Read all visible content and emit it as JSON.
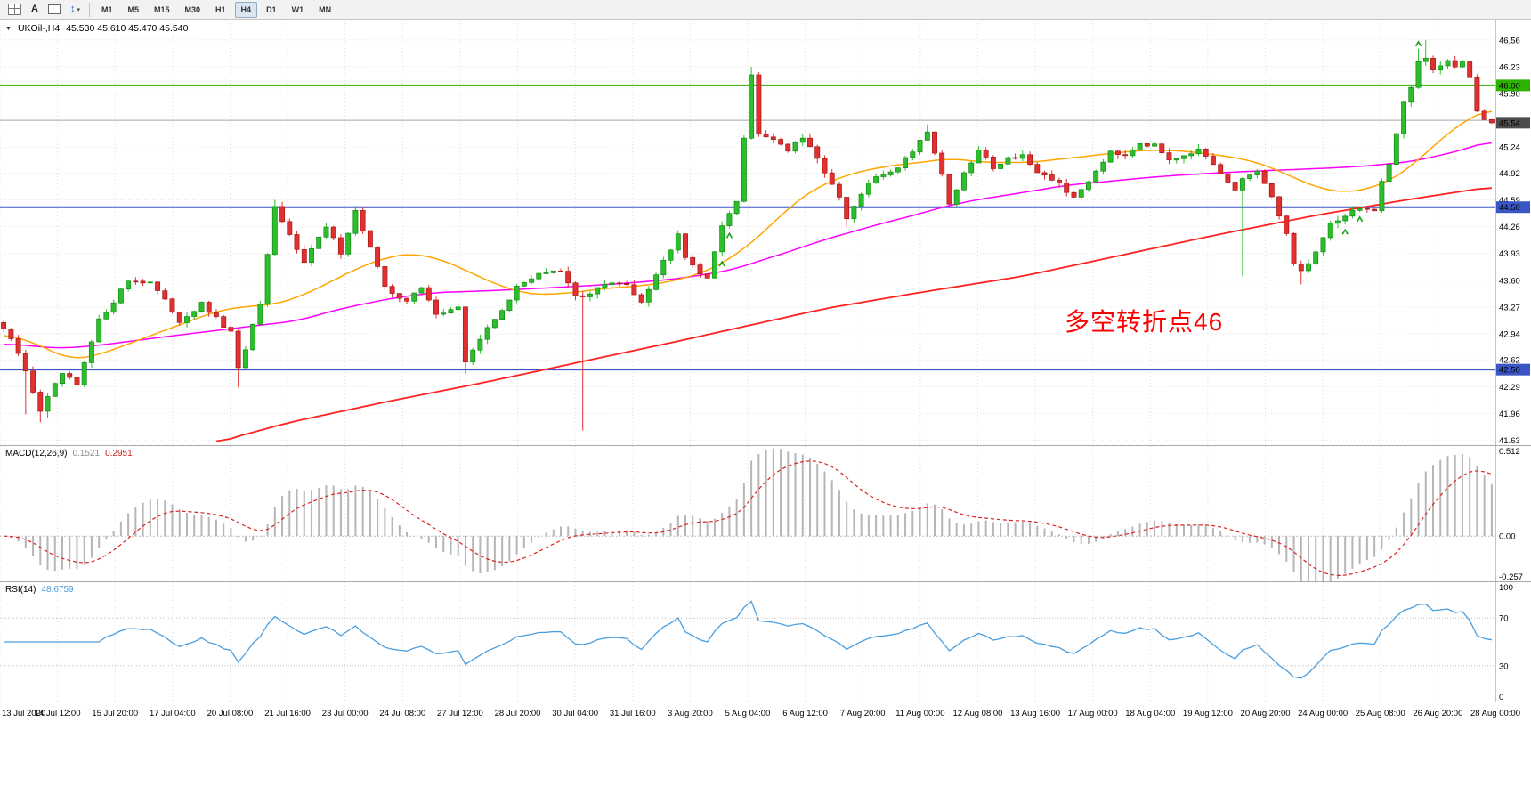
{
  "toolbar": {
    "icons": {
      "text_tool": "A",
      "arrows_tool": "↕",
      "caret": "▾"
    },
    "timeframes": [
      "M1",
      "M5",
      "M15",
      "M30",
      "H1",
      "H4",
      "D1",
      "W1",
      "MN"
    ],
    "active_timeframe": "H4"
  },
  "chart": {
    "symbol_header": "UKOil-,H4",
    "ohlc_header": "45.530 45.610 45.470 45.540",
    "dropdown_glyph": "▼",
    "annotation": "多空转折点46",
    "annotation_color": "#FF0000"
  },
  "price_axis": {
    "labels": [
      "46.56",
      "46.23",
      "45.90",
      "45.57",
      "45.24",
      "44.92",
      "44.59",
      "44.26",
      "43.93",
      "43.60",
      "43.27",
      "42.94",
      "42.62",
      "42.29",
      "41.96",
      "41.63"
    ],
    "tags": [
      {
        "label": "46.00",
        "value": 46.0,
        "bg": "#2DB200",
        "name": "resistance-line-price-tag"
      },
      {
        "label": "45.54",
        "value": 45.54,
        "bg": "#4D4D4D",
        "name": "current-price-tag"
      },
      {
        "label": "44.50",
        "value": 44.5,
        "bg": "#3A56C4",
        "name": "support-line-price-tag-1"
      },
      {
        "label": "42.50",
        "value": 42.5,
        "bg": "#3A56C4",
        "name": "support-line-price-tag-2"
      }
    ]
  },
  "time_axis": {
    "labels": [
      "13 Jul 2020",
      "14 Jul 12:00",
      "15 Jul 20:00",
      "17 Jul 04:00",
      "20 Jul 08:00",
      "21 Jul 16:00",
      "23 Jul 00:00",
      "24 Jul 08:00",
      "27 Jul 12:00",
      "28 Jul 20:00",
      "30 Jul 04:00",
      "31 Jul 16:00",
      "3 Aug 20:00",
      "5 Aug 04:00",
      "6 Aug 12:00",
      "7 Aug 20:00",
      "11 Aug 00:00",
      "12 Aug 08:00",
      "13 Aug 16:00",
      "17 Aug 00:00",
      "18 Aug 04:00",
      "19 Aug 12:00",
      "20 Aug 20:00",
      "24 Aug 00:00",
      "25 Aug 08:00",
      "26 Aug 20:00",
      "28 Aug 00:00"
    ]
  },
  "macd_panel": {
    "name_label": "MACD(12,26,9)",
    "value_main": "0.1521",
    "value_signal": "0.2951",
    "axis_labels": [
      "0.512",
      "0.00",
      "-0.257"
    ]
  },
  "rsi_panel": {
    "name_label": "RSI(14)",
    "value": "48.6759",
    "axis_labels": [
      "100",
      "70",
      "30",
      "0"
    ]
  },
  "colors": {
    "up": "#2DBE2D",
    "up_stroke": "#128912",
    "down": "#E03030",
    "down_stroke": "#A81414",
    "ma_fast": "#FFA500",
    "ma_mid": "#FF00FF",
    "ma_slow": "#FF2020",
    "macd_hist": "#B6B6B6",
    "macd_signal": "#DD2222",
    "rsi_line": "#4A9EDE",
    "hline_green": "#2DB200",
    "hline_blue": "#3A56C4",
    "hline_gray": "#A8A8A8",
    "grid": "#E7E7E7",
    "vgrid": "#DCDCDC",
    "axis_sep": "#8A8A8A"
  },
  "chart_data": {
    "type": "candlestick",
    "symbol": "UKOil-",
    "timeframe": "H4",
    "title": "UKOil-,H4 45.530 45.610 45.470 45.540",
    "current_bar": {
      "open": 45.53,
      "high": 45.61,
      "low": 45.47,
      "close": 45.54
    },
    "price_range": [
      41.57,
      46.81
    ],
    "n_candles": 204,
    "close_keyframes": [
      [
        0,
        43.0
      ],
      [
        2,
        42.7
      ],
      [
        5,
        42.0
      ],
      [
        8,
        42.45
      ],
      [
        10,
        42.3
      ],
      [
        13,
        43.1
      ],
      [
        17,
        43.6
      ],
      [
        20,
        43.58
      ],
      [
        24,
        43.1
      ],
      [
        27,
        43.3
      ],
      [
        31,
        42.95
      ],
      [
        32,
        42.5
      ],
      [
        35,
        43.3
      ],
      [
        37,
        44.48
      ],
      [
        39,
        44.15
      ],
      [
        41,
        43.85
      ],
      [
        44,
        44.25
      ],
      [
        46,
        43.95
      ],
      [
        48,
        44.45
      ],
      [
        50,
        44.0
      ],
      [
        52,
        43.5
      ],
      [
        55,
        43.35
      ],
      [
        57,
        43.5
      ],
      [
        59,
        43.2
      ],
      [
        62,
        43.25
      ],
      [
        63,
        42.6
      ],
      [
        64,
        42.75
      ],
      [
        66,
        43.0
      ],
      [
        70,
        43.5
      ],
      [
        73,
        43.7
      ],
      [
        76,
        43.7
      ],
      [
        78,
        43.4
      ],
      [
        79,
        43.4
      ],
      [
        82,
        43.55
      ],
      [
        85,
        43.55
      ],
      [
        87,
        43.35
      ],
      [
        91,
        44.0
      ],
      [
        92,
        44.2
      ],
      [
        93,
        43.9
      ],
      [
        96,
        43.6
      ],
      [
        98,
        44.3
      ],
      [
        100,
        44.55
      ],
      [
        102,
        46.15
      ],
      [
        103,
        45.4
      ],
      [
        105,
        45.35
      ],
      [
        107,
        45.2
      ],
      [
        109,
        45.35
      ],
      [
        112,
        44.95
      ],
      [
        114,
        44.6
      ],
      [
        115,
        44.35
      ],
      [
        118,
        44.8
      ],
      [
        122,
        45.0
      ],
      [
        124,
        45.2
      ],
      [
        126,
        45.45
      ],
      [
        128,
        44.9
      ],
      [
        129,
        44.55
      ],
      [
        131,
        44.9
      ],
      [
        133,
        45.2
      ],
      [
        135,
        45.0
      ],
      [
        137,
        45.1
      ],
      [
        139,
        45.15
      ],
      [
        141,
        44.9
      ],
      [
        144,
        44.8
      ],
      [
        146,
        44.6
      ],
      [
        149,
        44.95
      ],
      [
        151,
        45.2
      ],
      [
        153,
        45.15
      ],
      [
        155,
        45.3
      ],
      [
        157,
        45.25
      ],
      [
        159,
        45.1
      ],
      [
        161,
        45.15
      ],
      [
        163,
        45.2
      ],
      [
        166,
        44.9
      ],
      [
        168,
        44.7
      ],
      [
        169,
        44.85
      ],
      [
        171,
        44.95
      ],
      [
        173,
        44.6
      ],
      [
        175,
        44.2
      ],
      [
        176,
        43.8
      ],
      [
        177,
        43.7
      ],
      [
        179,
        43.95
      ],
      [
        181,
        44.3
      ],
      [
        183,
        44.4
      ],
      [
        185,
        44.5
      ],
      [
        187,
        44.45
      ],
      [
        188,
        44.8
      ],
      [
        189,
        45.0
      ],
      [
        190,
        45.4
      ],
      [
        191,
        45.8
      ],
      [
        192,
        46.0
      ],
      [
        193,
        46.3
      ],
      [
        194,
        46.35
      ],
      [
        195,
        46.2
      ],
      [
        196,
        46.25
      ],
      [
        197,
        46.3
      ],
      [
        198,
        46.2
      ],
      [
        199,
        46.3
      ],
      [
        200,
        46.1
      ],
      [
        201,
        45.7
      ],
      [
        202,
        45.6
      ],
      [
        203,
        45.54
      ]
    ],
    "wick_overrides": {
      "3": {
        "low": 41.95
      },
      "5": {
        "low": 41.85
      },
      "6": {
        "low": 41.9
      },
      "32": {
        "low": 42.28
      },
      "37": {
        "high": 44.59
      },
      "63": {
        "low": 42.45
      },
      "79": {
        "low": 41.75
      },
      "102": {
        "high": 46.23
      },
      "115": {
        "low": 44.26
      },
      "126": {
        "high": 45.52
      },
      "169": {
        "low": 43.65
      },
      "177": {
        "low": 43.55
      },
      "193": {
        "high": 46.45
      },
      "194": {
        "high": 46.56
      }
    },
    "hlines": [
      {
        "price": 46.0,
        "color_key": "hline_green",
        "width": 2,
        "name": "hline-resistance-46"
      },
      {
        "price": 45.57,
        "color_key": "hline_gray",
        "width": 1,
        "name": "hline-gray-4557"
      },
      {
        "price": 44.5,
        "color_key": "hline_blue",
        "width": 2,
        "name": "hline-support-4450"
      },
      {
        "price": 42.5,
        "color_key": "hline_blue",
        "width": 2,
        "name": "hline-support-4250"
      }
    ],
    "ma_fast_keyframes": [
      [
        0,
        42.95
      ],
      [
        5,
        42.8
      ],
      [
        9,
        42.62
      ],
      [
        13,
        42.68
      ],
      [
        18,
        42.85
      ],
      [
        24,
        43.05
      ],
      [
        29,
        43.22
      ],
      [
        33,
        43.28
      ],
      [
        37,
        43.3
      ],
      [
        41,
        43.42
      ],
      [
        45,
        43.6
      ],
      [
        49,
        43.78
      ],
      [
        53,
        43.9
      ],
      [
        56,
        43.93
      ],
      [
        60,
        43.85
      ],
      [
        64,
        43.68
      ],
      [
        68,
        43.52
      ],
      [
        72,
        43.42
      ],
      [
        77,
        43.44
      ],
      [
        82,
        43.5
      ],
      [
        87,
        43.53
      ],
      [
        92,
        43.6
      ],
      [
        97,
        43.75
      ],
      [
        102,
        44.05
      ],
      [
        106,
        44.4
      ],
      [
        110,
        44.7
      ],
      [
        115,
        44.9
      ],
      [
        120,
        45.0
      ],
      [
        125,
        45.05
      ],
      [
        129,
        45.1
      ],
      [
        134,
        45.05
      ],
      [
        140,
        45.05
      ],
      [
        145,
        45.1
      ],
      [
        150,
        45.15
      ],
      [
        155,
        45.2
      ],
      [
        160,
        45.2
      ],
      [
        165,
        45.15
      ],
      [
        170,
        45.08
      ],
      [
        174,
        44.95
      ],
      [
        177,
        44.82
      ],
      [
        180,
        44.72
      ],
      [
        183,
        44.68
      ],
      [
        186,
        44.72
      ],
      [
        189,
        44.82
      ],
      [
        192,
        45.0
      ],
      [
        195,
        45.25
      ],
      [
        198,
        45.48
      ],
      [
        200,
        45.6
      ],
      [
        203,
        45.72
      ]
    ],
    "ma_mid_keyframes": [
      [
        0,
        42.82
      ],
      [
        8,
        42.76
      ],
      [
        13,
        42.8
      ],
      [
        26,
        42.95
      ],
      [
        40,
        43.1
      ],
      [
        46,
        43.25
      ],
      [
        53,
        43.38
      ],
      [
        59,
        43.45
      ],
      [
        66,
        43.47
      ],
      [
        73,
        43.5
      ],
      [
        79,
        43.53
      ],
      [
        86,
        43.57
      ],
      [
        92,
        43.62
      ],
      [
        99,
        43.72
      ],
      [
        106,
        43.92
      ],
      [
        112,
        44.1
      ],
      [
        119,
        44.28
      ],
      [
        125,
        44.42
      ],
      [
        128,
        44.5
      ],
      [
        132,
        44.58
      ],
      [
        139,
        44.68
      ],
      [
        145,
        44.77
      ],
      [
        152,
        44.83
      ],
      [
        158,
        44.88
      ],
      [
        165,
        44.92
      ],
      [
        172,
        44.95
      ],
      [
        178,
        44.97
      ],
      [
        185,
        45.0
      ],
      [
        192,
        45.06
      ],
      [
        198,
        45.18
      ],
      [
        203,
        45.32
      ]
    ],
    "ma_slow_keyframes": [
      [
        29,
        41.57
      ],
      [
        30,
        41.63
      ],
      [
        39,
        41.85
      ],
      [
        52,
        42.1
      ],
      [
        66,
        42.35
      ],
      [
        79,
        42.6
      ],
      [
        92,
        42.85
      ],
      [
        102,
        43.05
      ],
      [
        112,
        43.25
      ],
      [
        125,
        43.45
      ],
      [
        139,
        43.65
      ],
      [
        152,
        43.9
      ],
      [
        165,
        44.15
      ],
      [
        179,
        44.4
      ],
      [
        192,
        44.6
      ],
      [
        203,
        44.75
      ]
    ],
    "markers": [
      {
        "index": 98,
        "position": "below"
      },
      {
        "index": 99,
        "position": "below"
      },
      {
        "index": 183,
        "position": "below"
      },
      {
        "index": 185,
        "position": "below"
      },
      {
        "index": 193,
        "position": "above"
      }
    ],
    "indicators": {
      "macd": {
        "fast": 12,
        "slow": 26,
        "signal": 9,
        "last_main": 0.1521,
        "last_signal": 0.2951,
        "range": [
          -0.257,
          0.512
        ]
      },
      "rsi": {
        "period": 14,
        "last": 48.6759,
        "range": [
          0,
          100
        ],
        "levels": [
          70,
          30
        ]
      }
    }
  }
}
